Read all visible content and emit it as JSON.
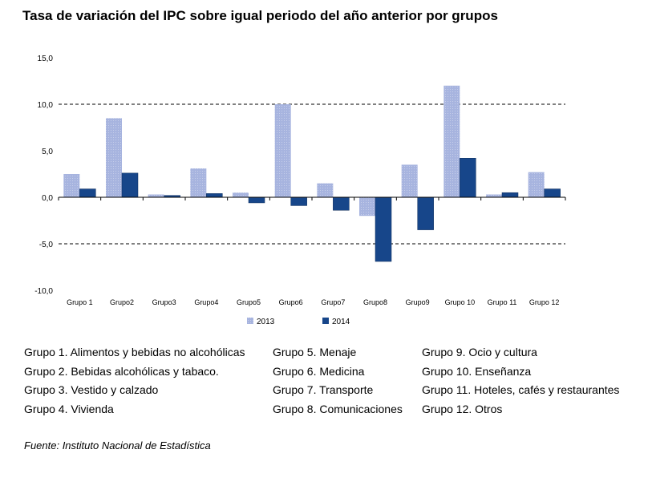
{
  "title": "Tasa de variación del IPC sobre igual periodo del año anterior por grupos",
  "chart_data": {
    "type": "bar",
    "categories": [
      "Grupo 1",
      "Grupo2",
      "Grupo3",
      "Grupo4",
      "Grupo5",
      "Grupo6",
      "Grupo7",
      "Grupo8",
      "Grupo9",
      "Grupo 10",
      "Grupo 11",
      "Grupo 12"
    ],
    "series": [
      {
        "name": "2013",
        "values": [
          2.5,
          8.5,
          0.3,
          3.1,
          0.5,
          10.0,
          1.5,
          -2.0,
          3.5,
          12.0,
          0.3,
          2.7
        ],
        "color": "#a7b4df"
      },
      {
        "name": "2014",
        "values": [
          0.9,
          2.6,
          0.2,
          0.4,
          -0.6,
          -0.9,
          -1.4,
          -6.9,
          -3.5,
          4.2,
          0.5,
          0.9
        ],
        "color": "#17468a"
      }
    ],
    "ylim": [
      -10,
      15
    ],
    "yticks": [
      "-10,0",
      "-5,0",
      "0,0",
      "5,0",
      "10,0",
      "15,0"
    ],
    "ytick_values": [
      -10,
      -5,
      0,
      5,
      10,
      15
    ],
    "gridlines": "dashed at 10 and -5",
    "legend_position": "bottom"
  },
  "groups_legend": {
    "col1": [
      "Grupo 1. Alimentos y bebidas no alcohólicas",
      "Grupo 2. Bebidas alcohólicas y  tabaco.",
      "Grupo 3. Vestido y calzado",
      "Grupo 4. Vivienda"
    ],
    "col2": [
      "Grupo 5. Menaje",
      "Grupo 6. Medicina",
      "Grupo 7. Transporte",
      "Grupo 8. Comunicaciones"
    ],
    "col3": [
      "Grupo 9. Ocio y cultura",
      "Grupo 10. Enseñanza",
      "Grupo 11. Hoteles, cafés y restaurantes",
      "Grupo 12. Otros"
    ]
  },
  "source": "Fuente: Instituto Nacional de Estadística"
}
